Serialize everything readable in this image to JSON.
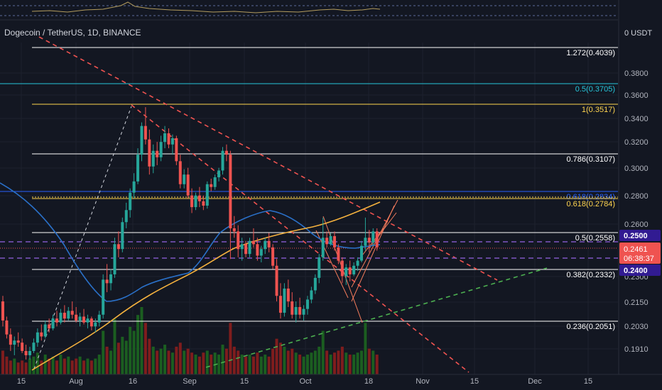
{
  "header": {
    "symbol_title": "Dogecoin / TetherUS, 1D, BINANCE",
    "currency": "0 USDT"
  },
  "price_badges": {
    "upper": "0.2500",
    "current_price": "0.2461",
    "countdown": "06:38:37",
    "lower": "0.2400"
  },
  "colors": {
    "background": "#131722",
    "bull": "#26a69a",
    "bear": "#ef5350",
    "fib_white": "#ffffff",
    "fib_gold": "#ffd54f",
    "fib_cyan": "#26c6da",
    "fib_blue": "#2962ff",
    "ma_blue": "#2a70c8",
    "ma_orange": "#f4b13e",
    "purple_dash": "#7e57c2",
    "red_dash": "#f05350",
    "green_dash": "#4caf50"
  },
  "chart_data": {
    "type": "candlestick",
    "y_scale": "log",
    "y_ticks": [
      "0.3800",
      "0.3600",
      "0.3400",
      "0.3200",
      "0.3000",
      "0.2800",
      "0.2600",
      "0.2300",
      "0.2150",
      "0.2030",
      "0.1910"
    ],
    "x_ticks": [
      "15",
      "Aug",
      "16",
      "Sep",
      "15",
      "Oct",
      "18",
      "Nov",
      "15",
      "Dec",
      "15"
    ],
    "fib_levels": [
      {
        "label": "1.272(0.4039)",
        "value": 0.4039,
        "color": "white"
      },
      {
        "label": "0.5(0.3705)",
        "value": 0.3705,
        "color": "cyan"
      },
      {
        "label": "1(0.3517)",
        "value": 0.3517,
        "color": "gold"
      },
      {
        "label": "0.786(0.3107)",
        "value": 0.3107,
        "color": "white"
      },
      {
        "label": "0.618(0.2834)",
        "value": 0.2834,
        "color": "blue"
      },
      {
        "label": "0.618(0.2784)",
        "value": 0.2784,
        "color": "gold"
      },
      {
        "label": "0.5(0.2558)",
        "value": 0.2558,
        "color": "white"
      },
      {
        "label": "0.382(0.2332)",
        "value": 0.2332,
        "color": "white"
      },
      {
        "label": "0.236(0.2051)",
        "value": 0.2051,
        "color": "white"
      }
    ],
    "candles": [
      [
        0.215,
        0.218,
        0.202,
        0.205
      ],
      [
        0.205,
        0.207,
        0.196,
        0.198
      ],
      [
        0.198,
        0.201,
        0.19,
        0.193
      ],
      [
        0.193,
        0.197,
        0.188,
        0.195
      ],
      [
        0.195,
        0.199,
        0.192,
        0.194
      ],
      [
        0.194,
        0.196,
        0.189,
        0.19
      ],
      [
        0.19,
        0.193,
        0.186,
        0.188
      ],
      [
        0.188,
        0.192,
        0.186,
        0.19
      ],
      [
        0.19,
        0.196,
        0.189,
        0.194
      ],
      [
        0.194,
        0.201,
        0.192,
        0.199
      ],
      [
        0.199,
        0.203,
        0.195,
        0.197
      ],
      [
        0.197,
        0.205,
        0.196,
        0.203
      ],
      [
        0.203,
        0.206,
        0.199,
        0.201
      ],
      [
        0.201,
        0.208,
        0.2,
        0.206
      ],
      [
        0.206,
        0.21,
        0.202,
        0.204
      ],
      [
        0.204,
        0.211,
        0.203,
        0.209
      ],
      [
        0.209,
        0.213,
        0.204,
        0.206
      ],
      [
        0.206,
        0.212,
        0.205,
        0.21
      ],
      [
        0.21,
        0.215,
        0.206,
        0.208
      ],
      [
        0.208,
        0.212,
        0.204,
        0.205
      ],
      [
        0.205,
        0.209,
        0.202,
        0.207
      ],
      [
        0.207,
        0.211,
        0.203,
        0.204
      ],
      [
        0.204,
        0.208,
        0.201,
        0.206
      ],
      [
        0.206,
        0.207,
        0.2,
        0.202
      ],
      [
        0.202,
        0.206,
        0.199,
        0.204
      ],
      [
        0.204,
        0.21,
        0.202,
        0.208
      ],
      [
        0.208,
        0.23,
        0.206,
        0.227
      ],
      [
        0.227,
        0.236,
        0.22,
        0.225
      ],
      [
        0.225,
        0.233,
        0.221,
        0.23
      ],
      [
        0.23,
        0.252,
        0.228,
        0.248
      ],
      [
        0.248,
        0.256,
        0.24,
        0.245
      ],
      [
        0.245,
        0.265,
        0.243,
        0.262
      ],
      [
        0.262,
        0.275,
        0.258,
        0.27
      ],
      [
        0.27,
        0.285,
        0.265,
        0.282
      ],
      [
        0.282,
        0.296,
        0.278,
        0.29
      ],
      [
        0.29,
        0.315,
        0.288,
        0.31
      ],
      [
        0.31,
        0.336,
        0.305,
        0.333
      ],
      [
        0.333,
        0.349,
        0.318,
        0.322
      ],
      [
        0.322,
        0.33,
        0.295,
        0.301
      ],
      [
        0.301,
        0.318,
        0.296,
        0.313
      ],
      [
        0.313,
        0.32,
        0.302,
        0.308
      ],
      [
        0.308,
        0.325,
        0.305,
        0.32
      ],
      [
        0.32,
        0.333,
        0.315,
        0.327
      ],
      [
        0.327,
        0.331,
        0.315,
        0.318
      ],
      [
        0.318,
        0.326,
        0.31,
        0.323
      ],
      [
        0.323,
        0.325,
        0.302,
        0.305
      ],
      [
        0.305,
        0.31,
        0.285,
        0.288
      ],
      [
        0.288,
        0.299,
        0.285,
        0.295
      ],
      [
        0.295,
        0.3,
        0.278,
        0.28
      ],
      [
        0.28,
        0.285,
        0.268,
        0.272
      ],
      [
        0.272,
        0.282,
        0.27,
        0.28
      ],
      [
        0.28,
        0.286,
        0.272,
        0.276
      ],
      [
        0.276,
        0.28,
        0.27,
        0.273
      ],
      [
        0.273,
        0.29,
        0.271,
        0.288
      ],
      [
        0.288,
        0.292,
        0.283,
        0.286
      ],
      [
        0.286,
        0.295,
        0.284,
        0.293
      ],
      [
        0.293,
        0.3,
        0.29,
        0.298
      ],
      [
        0.298,
        0.316,
        0.295,
        0.313
      ],
      [
        0.313,
        0.318,
        0.305,
        0.31
      ],
      [
        0.31,
        0.313,
        0.239,
        0.258
      ],
      [
        0.258,
        0.266,
        0.252,
        0.256
      ],
      [
        0.256,
        0.26,
        0.24,
        0.245
      ],
      [
        0.245,
        0.252,
        0.238,
        0.248
      ],
      [
        0.248,
        0.25,
        0.24,
        0.242
      ],
      [
        0.242,
        0.252,
        0.24,
        0.25
      ],
      [
        0.25,
        0.258,
        0.246,
        0.248
      ],
      [
        0.248,
        0.252,
        0.238,
        0.241
      ],
      [
        0.241,
        0.247,
        0.237,
        0.245
      ],
      [
        0.245,
        0.252,
        0.242,
        0.25
      ],
      [
        0.25,
        0.255,
        0.243,
        0.246
      ],
      [
        0.246,
        0.248,
        0.233,
        0.235
      ],
      [
        0.235,
        0.239,
        0.215,
        0.218
      ],
      [
        0.218,
        0.225,
        0.206,
        0.209
      ],
      [
        0.209,
        0.225,
        0.207,
        0.222
      ],
      [
        0.222,
        0.227,
        0.212,
        0.215
      ],
      [
        0.215,
        0.22,
        0.206,
        0.208
      ],
      [
        0.208,
        0.215,
        0.204,
        0.212
      ],
      [
        0.212,
        0.217,
        0.206,
        0.208
      ],
      [
        0.208,
        0.213,
        0.205,
        0.211
      ],
      [
        0.211,
        0.218,
        0.208,
        0.216
      ],
      [
        0.216,
        0.223,
        0.214,
        0.221
      ],
      [
        0.221,
        0.23,
        0.219,
        0.228
      ],
      [
        0.228,
        0.242,
        0.225,
        0.24
      ],
      [
        0.24,
        0.265,
        0.238,
        0.252
      ],
      [
        0.252,
        0.256,
        0.246,
        0.248
      ],
      [
        0.248,
        0.255,
        0.247,
        0.253
      ],
      [
        0.253,
        0.256,
        0.244,
        0.246
      ],
      [
        0.246,
        0.248,
        0.236,
        0.238
      ],
      [
        0.238,
        0.24,
        0.225,
        0.229
      ],
      [
        0.229,
        0.236,
        0.224,
        0.234
      ],
      [
        0.234,
        0.238,
        0.226,
        0.23
      ],
      [
        0.23,
        0.237,
        0.229,
        0.235
      ],
      [
        0.235,
        0.24,
        0.232,
        0.238
      ],
      [
        0.238,
        0.25,
        0.237,
        0.247
      ],
      [
        0.247,
        0.265,
        0.244,
        0.252
      ],
      [
        0.252,
        0.257,
        0.243,
        0.249
      ],
      [
        0.249,
        0.258,
        0.247,
        0.256
      ],
      [
        0.256,
        0.258,
        0.244,
        0.2461
      ]
    ],
    "volume": [
      12,
      9,
      7,
      8,
      6,
      7,
      6,
      8,
      9,
      11,
      7,
      10,
      8,
      9,
      7,
      10,
      8,
      9,
      7,
      8,
      9,
      7,
      8,
      7,
      8,
      10,
      22,
      14,
      12,
      28,
      16,
      19,
      17,
      24,
      22,
      30,
      34,
      26,
      18,
      14,
      12,
      13,
      15,
      12,
      11,
      14,
      16,
      12,
      13,
      11,
      10,
      9,
      11,
      12,
      10,
      11,
      10,
      15,
      13,
      26,
      14,
      12,
      10,
      9,
      10,
      9,
      11,
      9,
      10,
      9,
      13,
      18,
      16,
      14,
      12,
      13,
      11,
      10,
      9,
      10,
      11,
      12,
      14,
      22,
      12,
      10,
      11,
      12,
      14,
      11,
      10,
      10,
      11,
      12,
      26,
      13,
      12,
      10
    ]
  }
}
